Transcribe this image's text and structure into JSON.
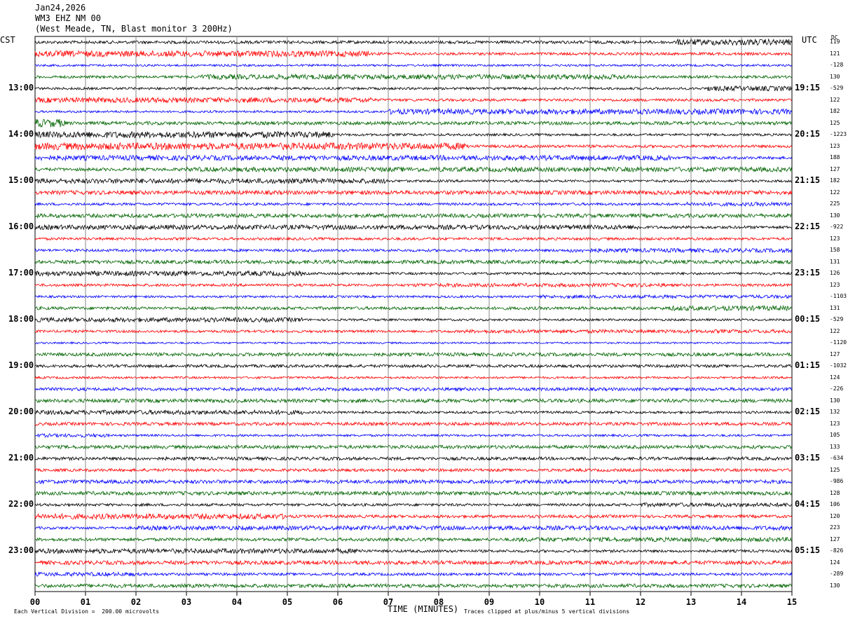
{
  "header": {
    "date": "Jan24,2026",
    "station": "WM3 EHZ NM 00",
    "location": "(West Meade, TN, Blast monitor 3 200Hz)"
  },
  "left_tz": "CST",
  "right_tz": "UTC",
  "dc_label": "DC",
  "footer": {
    "xlabel": "TIME (MINUTES)",
    "scale_note": "Each Vertical Division =  200.00 microvolts",
    "clip_note": "Traces clipped at plus/minus 5 vertical divisions"
  },
  "colors": {
    "black": "#000000",
    "red": "#ff0000",
    "blue": "#0000ff",
    "green": "#006400",
    "grid": "#888888"
  },
  "chart_data": {
    "type": "line",
    "title": "",
    "xlabel": "TIME (MINUTES)",
    "xlim": [
      0,
      15
    ],
    "x_ticks": [
      "00",
      "01",
      "02",
      "03",
      "04",
      "05",
      "06",
      "07",
      "08",
      "09",
      "10",
      "11",
      "12",
      "13",
      "14",
      "15"
    ],
    "trace_interval_minutes": 15,
    "trace_color_cycle": [
      "black",
      "red",
      "blue",
      "green"
    ],
    "left_hour_labels": [
      "13:00",
      "14:00",
      "15:00",
      "16:00",
      "17:00",
      "18:00",
      "19:00",
      "20:00",
      "21:00",
      "22:00",
      "23:00"
    ],
    "right_hour_labels": [
      "19:15",
      "20:15",
      "21:15",
      "22:15",
      "23:15",
      "00:15",
      "01:15",
      "02:15",
      "03:15",
      "04:15",
      "05:15"
    ],
    "dc_offsets": [
      "119",
      "121",
      "-128",
      "130",
      "-529",
      "122",
      "182",
      "125",
      "-1223",
      "123",
      "188",
      "127",
      "182",
      "122",
      "225",
      "130",
      "-922",
      "123",
      "158",
      "131",
      "126",
      "123",
      "-1103",
      "131",
      "-529",
      "122",
      "-1120",
      "127",
      "-1032",
      "124",
      "-226",
      "130",
      "132",
      "123",
      "105",
      "133",
      "-634",
      "125",
      "-986",
      "128",
      "106",
      "120",
      "223",
      "127",
      "-826",
      "124",
      "-289",
      "130"
    ],
    "series_activity": [
      [
        0.55,
        0.75,
        12.7,
        15.0,
        2.0
      ],
      [
        0.5,
        0.75,
        0.0,
        6.6,
        2.2
      ],
      [
        0.5,
        0.45,
        0,
        0,
        1
      ],
      [
        0.5,
        0.7,
        3.3,
        11.8,
        1.9
      ],
      [
        0.55,
        0.5,
        13.3,
        15.0,
        2.0
      ],
      [
        0.5,
        0.75,
        0.0,
        6.7,
        1.9
      ],
      [
        0.5,
        0.5,
        7.0,
        15.0,
        2.4
      ],
      [
        0.6,
        0.8,
        0.0,
        0.6,
        2.4
      ],
      [
        0.55,
        0.5,
        0.0,
        5.9,
        2.6
      ],
      [
        0.55,
        0.7,
        0.0,
        8.6,
        2.4
      ],
      [
        0.6,
        0.55,
        0.0,
        12.6,
        1.8
      ],
      [
        0.55,
        0.8,
        3.0,
        15.0,
        1.5
      ],
      [
        0.55,
        0.5,
        0.0,
        7.0,
        2.0
      ],
      [
        0.55,
        0.8,
        0.0,
        15.0,
        1.3
      ],
      [
        0.55,
        0.55,
        12.9,
        15.0,
        1.5
      ],
      [
        0.55,
        0.85,
        0.0,
        15.0,
        1.2
      ],
      [
        0.65,
        0.5,
        0.0,
        12.0,
        1.6
      ],
      [
        0.5,
        0.7,
        0.0,
        15.0,
        1.0
      ],
      [
        0.55,
        0.6,
        10.5,
        15.0,
        1.5
      ],
      [
        0.55,
        0.8,
        0.0,
        15.0,
        1.2
      ],
      [
        0.55,
        0.5,
        0.0,
        5.3,
        2.0
      ],
      [
        0.5,
        0.7,
        7.5,
        12.5,
        1.4
      ],
      [
        0.5,
        0.5,
        10.0,
        15.0,
        1.5
      ],
      [
        0.55,
        0.75,
        12.5,
        15.0,
        1.6
      ],
      [
        0.5,
        0.5,
        0.0,
        5.3,
        2.0
      ],
      [
        0.5,
        0.65,
        8.5,
        15.0,
        1.4
      ],
      [
        0.45,
        0.4,
        0,
        0,
        1
      ],
      [
        0.55,
        0.8,
        0.0,
        15.0,
        1.1
      ],
      [
        0.55,
        0.5,
        0.0,
        15.0,
        1.2
      ],
      [
        0.45,
        0.6,
        0,
        0,
        1
      ],
      [
        0.55,
        0.5,
        0.0,
        15.0,
        1.3
      ],
      [
        0.55,
        0.75,
        0.0,
        15.0,
        1.2
      ],
      [
        0.55,
        0.5,
        0.0,
        5.3,
        1.8
      ],
      [
        0.55,
        0.7,
        0.0,
        15.0,
        1.1
      ],
      [
        0.5,
        0.5,
        0.0,
        1.5,
        1.6
      ],
      [
        0.55,
        0.8,
        0.0,
        15.0,
        1.1
      ],
      [
        0.55,
        0.5,
        0.0,
        15.0,
        1.3
      ],
      [
        0.55,
        0.7,
        0.0,
        15.0,
        1.0
      ],
      [
        0.6,
        0.5,
        0.0,
        15.0,
        1.4
      ],
      [
        0.55,
        0.8,
        0.0,
        15.0,
        1.2
      ],
      [
        0.6,
        0.5,
        12.0,
        15.0,
        1.5
      ],
      [
        0.55,
        0.75,
        0.0,
        5.0,
        1.8
      ],
      [
        0.6,
        0.5,
        2.0,
        15.0,
        1.6
      ],
      [
        0.55,
        0.8,
        9.5,
        15.0,
        1.4
      ],
      [
        0.6,
        0.5,
        0.0,
        6.5,
        1.8
      ],
      [
        0.55,
        0.75,
        0.0,
        15.0,
        1.3
      ],
      [
        0.6,
        0.5,
        0.0,
        2.0,
        1.5
      ],
      [
        0.55,
        0.8,
        0.0,
        15.0,
        1.2
      ]
    ]
  }
}
